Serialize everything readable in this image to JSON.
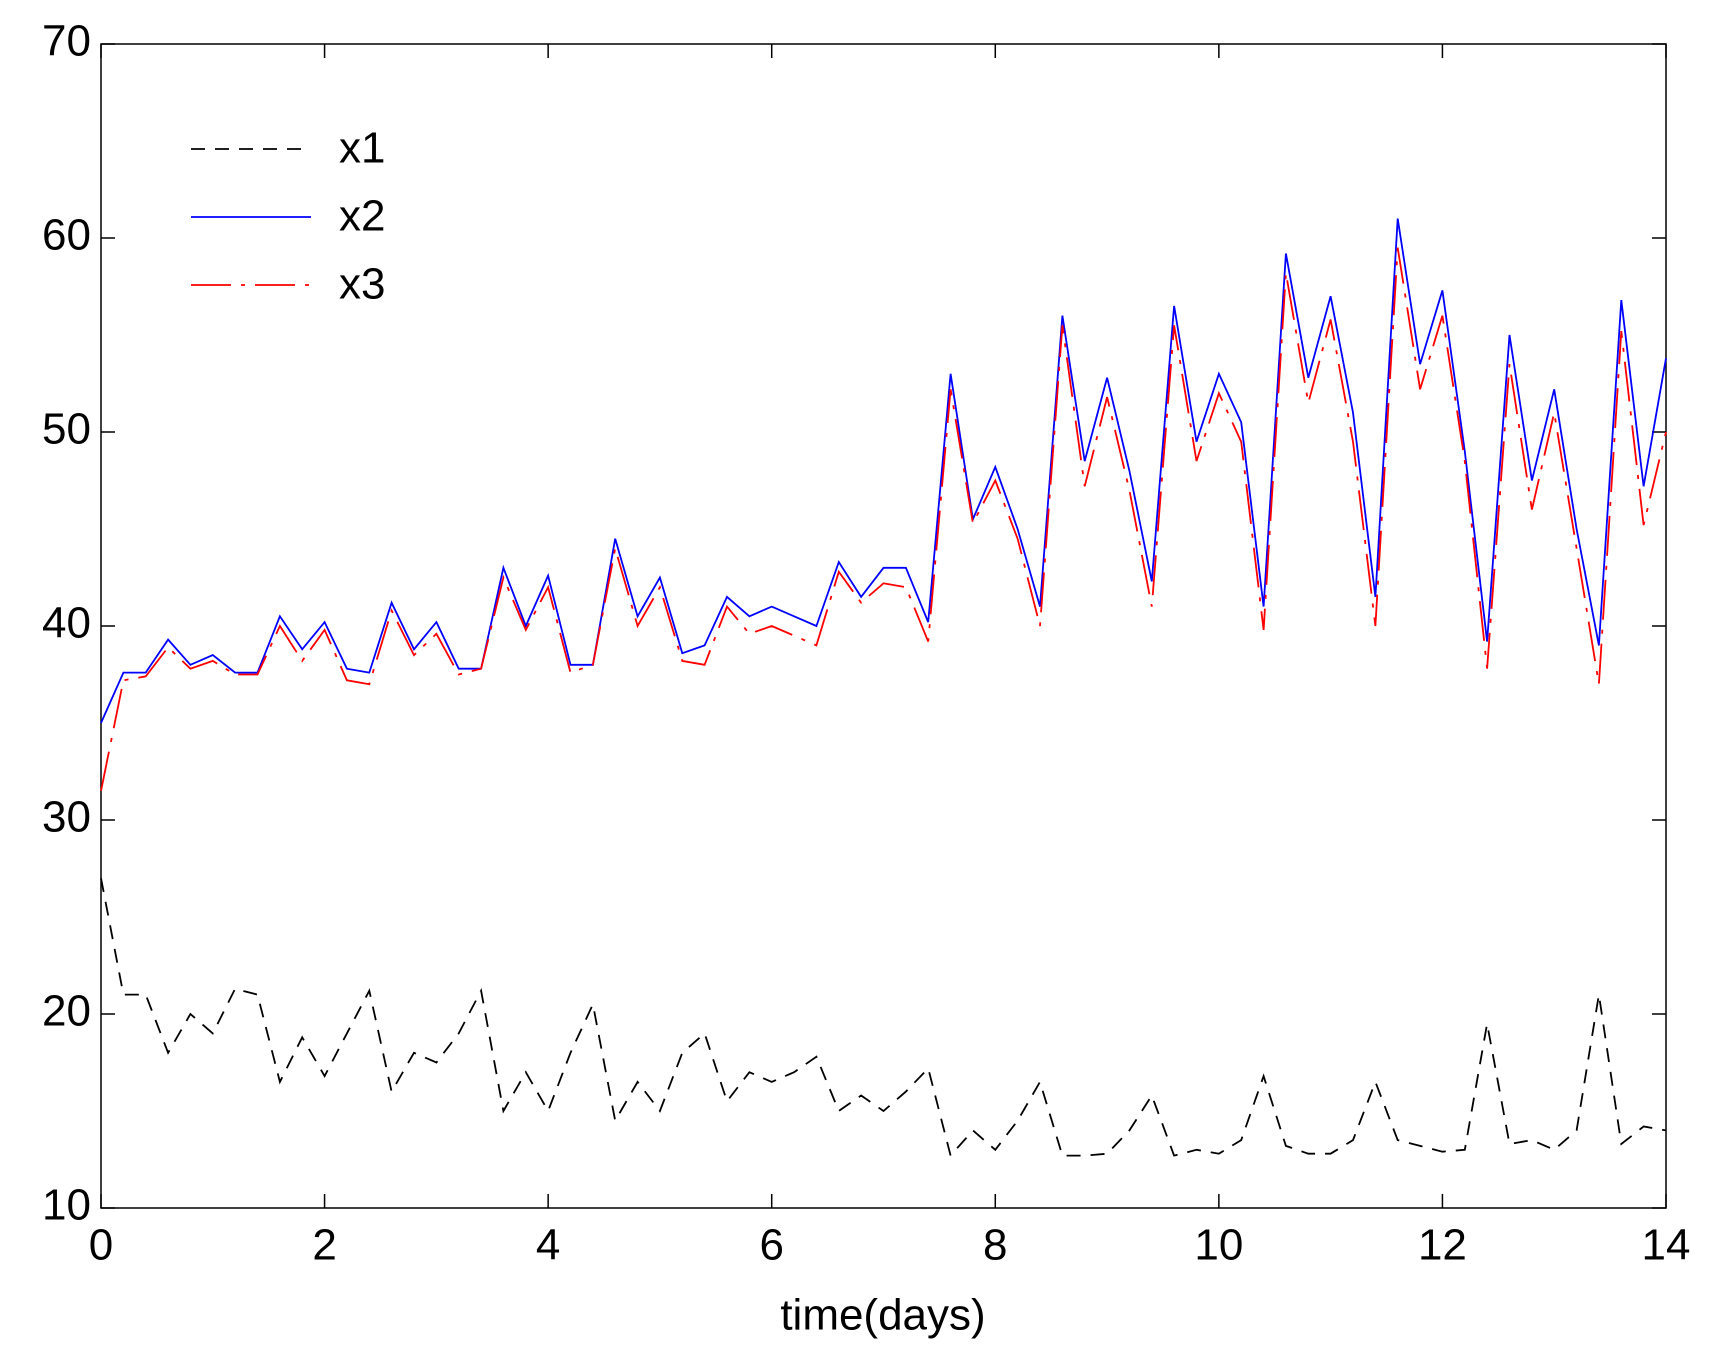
{
  "chart_data": {
    "type": "line",
    "x_label": "time(days)",
    "x": [
      0,
      0.2,
      0.4,
      0.6,
      0.8,
      1,
      1.2,
      1.4,
      1.6,
      1.8,
      2,
      2.2,
      2.4,
      2.6,
      2.8,
      3,
      3.2,
      3.4,
      3.6,
      3.8,
      4,
      4.2,
      4.4,
      4.6,
      4.8,
      5,
      5.2,
      5.4,
      5.6,
      5.8,
      6,
      6.2,
      6.4,
      6.6,
      6.8,
      7,
      7.2,
      7.4,
      7.6,
      7.8,
      8,
      8.2,
      8.4,
      8.6,
      8.8,
      9,
      9.2,
      9.4,
      9.6,
      9.8,
      10,
      10.2,
      10.4,
      10.6,
      10.8,
      11,
      11.2,
      11.4,
      11.6,
      11.8,
      12,
      12.2,
      12.4,
      12.6,
      12.8,
      13,
      13.2,
      13.4,
      13.6,
      13.8,
      14
    ],
    "series": [
      {
        "name": "x1",
        "color": "#000000",
        "values": [
          27,
          21,
          21,
          18,
          20,
          19,
          21.3,
          21,
          16.5,
          18.8,
          16.8,
          19,
          21.2,
          16,
          18,
          17.5,
          19,
          21.2,
          15,
          17,
          15,
          18,
          20.5,
          14.5,
          16.5,
          15,
          18,
          19,
          15.5,
          17,
          16.5,
          17,
          17.8,
          15,
          15.8,
          15,
          16,
          17.2,
          12.7,
          14,
          13,
          14.5,
          16.5,
          12.7,
          12.7,
          12.8,
          14,
          15.8,
          12.7,
          13,
          12.8,
          13.5,
          16.8,
          13.2,
          12.8,
          12.8,
          13.5,
          16.5,
          13.5,
          13.2,
          12.9,
          13,
          19.5,
          13.3,
          13.5,
          13,
          14,
          21,
          13.3,
          14.2,
          14
        ]
      },
      {
        "name": "x2",
        "color": "#0000ff",
        "values": [
          35,
          37.6,
          37.6,
          39.3,
          38,
          38.5,
          37.6,
          37.6,
          40.5,
          38.8,
          40.2,
          37.8,
          37.6,
          41.2,
          38.8,
          40.2,
          37.8,
          37.8,
          43,
          40,
          42.6,
          38,
          38,
          44.5,
          40.5,
          42.5,
          38.6,
          39,
          41.5,
          40.5,
          41,
          40.5,
          40,
          43.3,
          41.5,
          43,
          43,
          40.2,
          53,
          45.5,
          48.2,
          45,
          41,
          56,
          48.5,
          52.8,
          48,
          42.3,
          56.5,
          49.5,
          53,
          50.5,
          41,
          59.2,
          52.8,
          57,
          51,
          41.5,
          61,
          53.5,
          57.3,
          49,
          39.2,
          55,
          47.5,
          52.2,
          45,
          39,
          56.8,
          47.2,
          53.8
        ]
      },
      {
        "name": "x3",
        "color": "#ff0000",
        "values": [
          31.5,
          37.2,
          37.4,
          38.9,
          37.8,
          38.2,
          37.5,
          37.5,
          40,
          38.2,
          39.8,
          37.2,
          37,
          40.8,
          38.5,
          39.6,
          37.5,
          37.8,
          42.5,
          39.8,
          42,
          37.6,
          38,
          44,
          40,
          42,
          38.2,
          38,
          41,
          39.6,
          40,
          39.5,
          39,
          42.8,
          41.2,
          42.2,
          42,
          39.2,
          52.2,
          45.3,
          47.5,
          44.5,
          40,
          55.5,
          47.2,
          51.8,
          47,
          41,
          55.5,
          48.5,
          52,
          49.5,
          39.8,
          58.2,
          51.5,
          55.8,
          49.5,
          40,
          59.5,
          52.2,
          56,
          48.5,
          37.8,
          53.5,
          46,
          51,
          44,
          37,
          55.2,
          45.2,
          50
        ]
      }
    ],
    "xlim": [
      0,
      14
    ],
    "xticks": [
      0,
      2,
      4,
      6,
      8,
      10,
      12,
      14
    ],
    "ylim": [
      10,
      70
    ],
    "yticks": [
      10,
      20,
      30,
      40,
      50,
      60,
      70
    ],
    "legend": "upper-left"
  }
}
